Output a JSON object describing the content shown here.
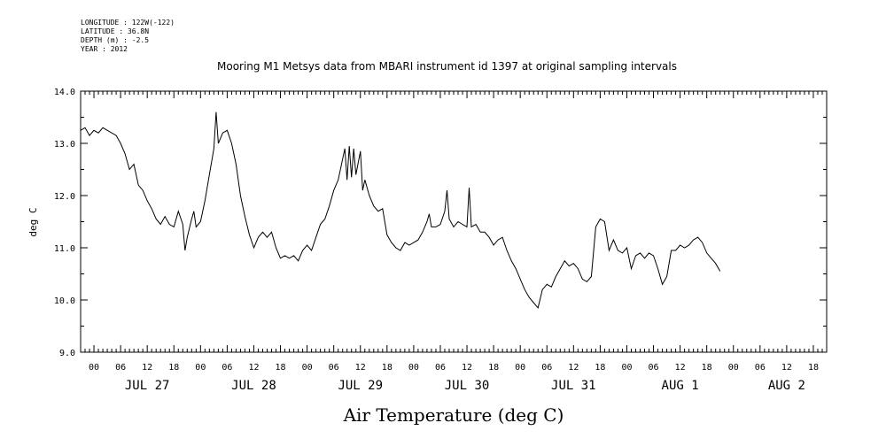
{
  "header": {
    "longitude": "LONGITUDE : 122W(-122)",
    "latitude": "LATITUDE : 36.8N",
    "depth": "DEPTH (m) : -2.5",
    "year": "YEAR : 2012"
  },
  "chart_data": {
    "type": "line",
    "title": "Mooring M1 Metsys data from MBARI instrument id 1397 at original sampling intervals",
    "xlabel": "Air Temperature (deg C)",
    "ylabel": "deg C",
    "ylim": [
      9.0,
      14.0
    ],
    "yticks": [
      "9.0",
      "10.0",
      "11.0",
      "12.0",
      "13.0",
      "14.0"
    ],
    "xlim_hours": [
      -3,
      165
    ],
    "hour_labels": [
      "00",
      "06",
      "12",
      "18"
    ],
    "day_labels": [
      "JUL 27",
      "JUL 28",
      "JUL 29",
      "JUL 30",
      "JUL 31",
      "AUG  1",
      "AUG  2"
    ],
    "grid": false,
    "series": [
      {
        "points": [
          [
            -3,
            13.25
          ],
          [
            -2,
            13.3
          ],
          [
            -1,
            13.15
          ],
          [
            0,
            13.25
          ],
          [
            1,
            13.2
          ],
          [
            2,
            13.3
          ],
          [
            3,
            13.25
          ],
          [
            4,
            13.2
          ],
          [
            5,
            13.15
          ],
          [
            6,
            13.0
          ],
          [
            7,
            12.8
          ],
          [
            8,
            12.5
          ],
          [
            9,
            12.6
          ],
          [
            10,
            12.2
          ],
          [
            11,
            12.1
          ],
          [
            12,
            11.9
          ],
          [
            13,
            11.75
          ],
          [
            14,
            11.55
          ],
          [
            15,
            11.45
          ],
          [
            16,
            11.6
          ],
          [
            17,
            11.45
          ],
          [
            18,
            11.4
          ],
          [
            19,
            11.7
          ],
          [
            20,
            11.45
          ],
          [
            20.5,
            10.95
          ],
          [
            21,
            11.2
          ],
          [
            22,
            11.55
          ],
          [
            22.5,
            11.7
          ],
          [
            23,
            11.4
          ],
          [
            24,
            11.5
          ],
          [
            25,
            11.9
          ],
          [
            26,
            12.4
          ],
          [
            27,
            12.9
          ],
          [
            27.5,
            13.6
          ],
          [
            28,
            13.0
          ],
          [
            29,
            13.2
          ],
          [
            30,
            13.25
          ],
          [
            31,
            13.0
          ],
          [
            32,
            12.6
          ],
          [
            33,
            12.0
          ],
          [
            34,
            11.6
          ],
          [
            35,
            11.25
          ],
          [
            36,
            11.0
          ],
          [
            37,
            11.2
          ],
          [
            38,
            11.3
          ],
          [
            39,
            11.2
          ],
          [
            40,
            11.3
          ],
          [
            41,
            11.0
          ],
          [
            42,
            10.8
          ],
          [
            43,
            10.85
          ],
          [
            44,
            10.8
          ],
          [
            45,
            10.85
          ],
          [
            46,
            10.75
          ],
          [
            47,
            10.95
          ],
          [
            48,
            11.05
          ],
          [
            49,
            10.95
          ],
          [
            50,
            11.2
          ],
          [
            51,
            11.45
          ],
          [
            52,
            11.55
          ],
          [
            53,
            11.8
          ],
          [
            54,
            12.1
          ],
          [
            55,
            12.3
          ],
          [
            56,
            12.7
          ],
          [
            56.5,
            12.9
          ],
          [
            57,
            12.3
          ],
          [
            57.5,
            12.95
          ],
          [
            58,
            12.35
          ],
          [
            58.5,
            12.9
          ],
          [
            59,
            12.4
          ],
          [
            60,
            12.85
          ],
          [
            60.5,
            12.1
          ],
          [
            61,
            12.3
          ],
          [
            62,
            12.0
          ],
          [
            63,
            11.8
          ],
          [
            64,
            11.7
          ],
          [
            65,
            11.75
          ],
          [
            66,
            11.25
          ],
          [
            67,
            11.1
          ],
          [
            68,
            11.0
          ],
          [
            69,
            10.95
          ],
          [
            70,
            11.1
          ],
          [
            71,
            11.05
          ],
          [
            72,
            11.1
          ],
          [
            73,
            11.15
          ],
          [
            74,
            11.3
          ],
          [
            75,
            11.5
          ],
          [
            75.5,
            11.65
          ],
          [
            76,
            11.4
          ],
          [
            77,
            11.4
          ],
          [
            78,
            11.45
          ],
          [
            79,
            11.7
          ],
          [
            79.5,
            12.1
          ],
          [
            80,
            11.55
          ],
          [
            81,
            11.4
          ],
          [
            82,
            11.5
          ],
          [
            83,
            11.45
          ],
          [
            84,
            11.4
          ],
          [
            84.5,
            12.15
          ],
          [
            85,
            11.4
          ],
          [
            86,
            11.45
          ],
          [
            87,
            11.3
          ],
          [
            88,
            11.3
          ],
          [
            89,
            11.2
          ],
          [
            90,
            11.05
          ],
          [
            91,
            11.15
          ],
          [
            92,
            11.2
          ],
          [
            93,
            10.95
          ],
          [
            94,
            10.75
          ],
          [
            95,
            10.6
          ],
          [
            96,
            10.4
          ],
          [
            97,
            10.2
          ],
          [
            98,
            10.05
          ],
          [
            99,
            9.95
          ],
          [
            100,
            9.85
          ],
          [
            101,
            10.2
          ],
          [
            102,
            10.3
          ],
          [
            103,
            10.25
          ],
          [
            104,
            10.45
          ],
          [
            105,
            10.6
          ],
          [
            106,
            10.75
          ],
          [
            107,
            10.65
          ],
          [
            108,
            10.7
          ],
          [
            109,
            10.6
          ],
          [
            110,
            10.4
          ],
          [
            111,
            10.35
          ],
          [
            112,
            10.45
          ],
          [
            113,
            11.4
          ],
          [
            114,
            11.55
          ],
          [
            115,
            11.5
          ],
          [
            116,
            10.95
          ],
          [
            117,
            11.15
          ],
          [
            118,
            10.95
          ],
          [
            119,
            10.9
          ],
          [
            120,
            11.0
          ],
          [
            121,
            10.6
          ],
          [
            122,
            10.85
          ],
          [
            123,
            10.9
          ],
          [
            124,
            10.8
          ],
          [
            125,
            10.9
          ],
          [
            126,
            10.85
          ],
          [
            127,
            10.6
          ],
          [
            128,
            10.3
          ],
          [
            129,
            10.45
          ],
          [
            130,
            10.95
          ],
          [
            131,
            10.95
          ],
          [
            132,
            11.05
          ],
          [
            133,
            11.0
          ],
          [
            134,
            11.05
          ],
          [
            135,
            11.15
          ],
          [
            136,
            11.2
          ],
          [
            137,
            11.1
          ],
          [
            138,
            10.9
          ],
          [
            139,
            10.8
          ],
          [
            140,
            10.7
          ],
          [
            141,
            10.55
          ]
        ]
      }
    ]
  }
}
